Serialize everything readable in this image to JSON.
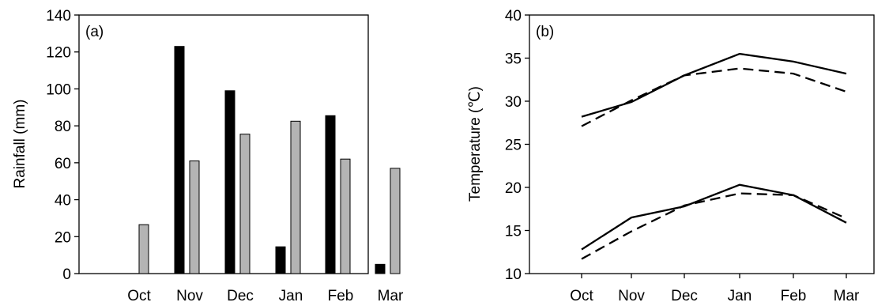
{
  "chart_data": [
    {
      "type": "bar",
      "panel_label": "(a)",
      "categories": [
        "Oct",
        "Nov",
        "Dec",
        "Jan",
        "Feb",
        "Mar"
      ],
      "ylabel": "Rainfall (mm)",
      "xlabel": "",
      "ylim": [
        0,
        140
      ],
      "yticks": [
        "0",
        "20",
        "40",
        "60",
        "80",
        "100",
        "120",
        "140"
      ],
      "series": [
        {
          "color": "#000000",
          "values": [
            0,
            123,
            99,
            14.5,
            85.5,
            5
          ]
        },
        {
          "color": "#b4b4b4",
          "values": [
            26.5,
            61,
            75.5,
            82.5,
            62,
            57
          ]
        }
      ],
      "grid": false,
      "legend": "none"
    },
    {
      "type": "line",
      "panel_label": "(b)",
      "categories": [
        "Oct",
        "Nov",
        "Dec",
        "Jan",
        "Feb",
        "Mar"
      ],
      "ylabel": "Temperature (℃)",
      "xlabel": "",
      "ylim": [
        10,
        40
      ],
      "yticks": [
        "10",
        "15",
        "20",
        "25",
        "30",
        "35",
        "40"
      ],
      "series": [
        {
          "style": "solid",
          "values": [
            28.2,
            29.9,
            33.0,
            35.5,
            34.6,
            33.2
          ]
        },
        {
          "style": "dashed",
          "values": [
            27.1,
            30.1,
            33.0,
            33.8,
            33.2,
            31.1
          ]
        },
        {
          "style": "solid",
          "values": [
            12.8,
            16.5,
            17.8,
            20.3,
            19.1,
            15.9
          ]
        },
        {
          "style": "dashed",
          "values": [
            11.7,
            14.9,
            17.9,
            19.3,
            19.1,
            16.4
          ]
        }
      ],
      "grid": false,
      "legend": "none"
    }
  ]
}
